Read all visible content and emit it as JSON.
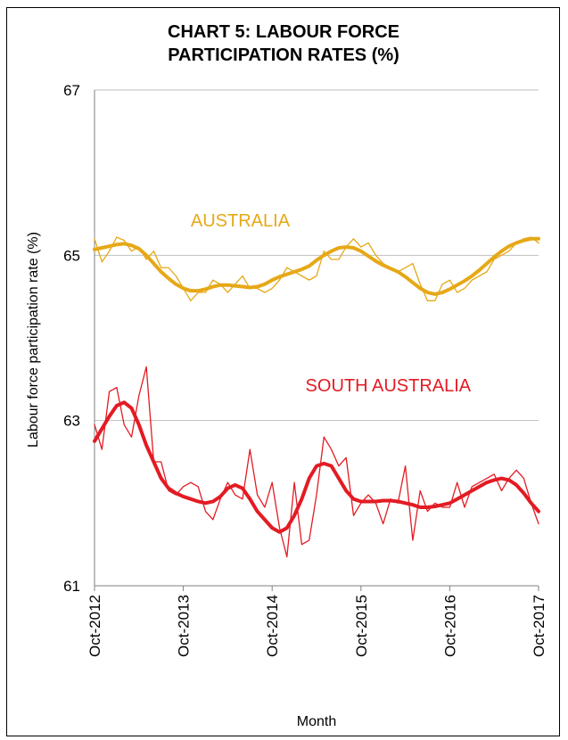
{
  "chart_data": {
    "type": "line",
    "title_line1": "CHART 5: LABOUR FORCE",
    "title_line2": "PARTICIPATION RATES (%)",
    "xlabel": "Month",
    "ylabel": "Labour force participation rate (%)",
    "ylim": [
      61,
      67
    ],
    "yticks": [
      "61",
      "63",
      "65",
      "67"
    ],
    "xlim": [
      0,
      60
    ],
    "xticks": [
      {
        "label": "Oct-2012",
        "month_index": 0
      },
      {
        "label": "Oct-2013",
        "month_index": 12
      },
      {
        "label": "Oct-2014",
        "month_index": 24
      },
      {
        "label": "Oct-2015",
        "month_index": 36
      },
      {
        "label": "Oct-2016",
        "month_index": 48
      },
      {
        "label": "Oct-2017",
        "month_index": 60
      }
    ],
    "gridlines": "horizontal",
    "legend": "inline labels",
    "colors": {
      "australia": "#E6A817",
      "south_australia": "#E31B23",
      "grid": "#bfbfbf"
    },
    "series": [
      {
        "name": "AUSTRALIA",
        "kind": "monthly",
        "values": [
          65.2,
          64.92,
          65.05,
          65.22,
          65.18,
          65.05,
          65.1,
          64.95,
          65.05,
          64.85,
          64.85,
          64.75,
          64.6,
          64.45,
          64.55,
          64.55,
          64.7,
          64.65,
          64.55,
          64.65,
          64.75,
          64.6,
          64.6,
          64.55,
          64.6,
          64.7,
          64.85,
          64.8,
          64.75,
          64.7,
          64.75,
          65.05,
          64.95,
          64.95,
          65.1,
          65.2,
          65.1,
          65.15,
          65.0,
          64.9,
          64.85,
          64.8,
          64.85,
          64.9,
          64.65,
          64.45,
          64.45,
          64.65,
          64.7,
          64.55,
          64.6,
          64.7,
          64.75,
          64.8,
          64.95,
          65.0,
          65.05,
          65.15,
          65.2,
          65.22,
          65.15
        ]
      },
      {
        "name": "AUSTRALIA",
        "kind": "trend",
        "values": [
          65.07,
          65.09,
          65.11,
          65.13,
          65.14,
          65.12,
          65.08,
          65.0,
          64.9,
          64.8,
          64.72,
          64.65,
          64.6,
          64.57,
          64.57,
          64.59,
          64.62,
          64.64,
          64.64,
          64.63,
          64.62,
          64.61,
          64.62,
          64.65,
          64.7,
          64.74,
          64.77,
          64.8,
          64.83,
          64.87,
          64.94,
          65.0,
          65.05,
          65.09,
          65.1,
          65.09,
          65.05,
          64.99,
          64.93,
          64.88,
          64.84,
          64.8,
          64.74,
          64.67,
          64.6,
          64.55,
          64.53,
          64.55,
          64.59,
          64.64,
          64.69,
          64.75,
          64.82,
          64.9,
          64.98,
          65.05,
          65.11,
          65.15,
          65.18,
          65.2,
          65.2
        ]
      },
      {
        "name": "SOUTH AUSTRALIA",
        "kind": "monthly",
        "values": [
          62.95,
          62.65,
          63.35,
          63.4,
          62.95,
          62.8,
          63.3,
          63.65,
          62.5,
          62.5,
          62.15,
          62.1,
          62.2,
          62.25,
          62.2,
          61.9,
          61.8,
          62.05,
          62.25,
          62.1,
          62.05,
          62.65,
          62.1,
          61.95,
          62.25,
          61.7,
          61.35,
          62.25,
          61.5,
          61.55,
          62.1,
          62.8,
          62.65,
          62.45,
          62.55,
          61.85,
          62.0,
          62.1,
          62.0,
          61.75,
          62.05,
          62.0,
          62.45,
          61.55,
          62.15,
          61.9,
          62.0,
          61.95,
          61.95,
          62.25,
          61.95,
          62.2,
          62.25,
          62.3,
          62.35,
          62.15,
          62.3,
          62.4,
          62.3,
          62.0,
          61.75
        ]
      },
      {
        "name": "SOUTH AUSTRALIA",
        "kind": "trend",
        "values": [
          62.75,
          62.9,
          63.05,
          63.18,
          63.22,
          63.15,
          62.95,
          62.7,
          62.5,
          62.3,
          62.18,
          62.12,
          62.08,
          62.05,
          62.02,
          62.0,
          62.02,
          62.08,
          62.18,
          62.22,
          62.18,
          62.05,
          61.9,
          61.8,
          61.7,
          61.65,
          61.7,
          61.85,
          62.05,
          62.3,
          62.45,
          62.48,
          62.45,
          62.3,
          62.15,
          62.05,
          62.02,
          62.02,
          62.02,
          62.03,
          62.03,
          62.02,
          62.0,
          61.98,
          61.95,
          61.95,
          61.96,
          61.98,
          62.0,
          62.05,
          62.1,
          62.15,
          62.2,
          62.25,
          62.28,
          62.3,
          62.28,
          62.22,
          62.12,
          62.0,
          61.9
        ]
      }
    ],
    "annotations": [
      {
        "text": "AUSTRALIA",
        "series": "AUSTRALIA",
        "at_month": 13,
        "at_value": 65.35
      },
      {
        "text": "SOUTH AUSTRALIA",
        "series": "SOUTH AUSTRALIA",
        "at_month": 28.5,
        "at_value": 63.35
      }
    ]
  }
}
